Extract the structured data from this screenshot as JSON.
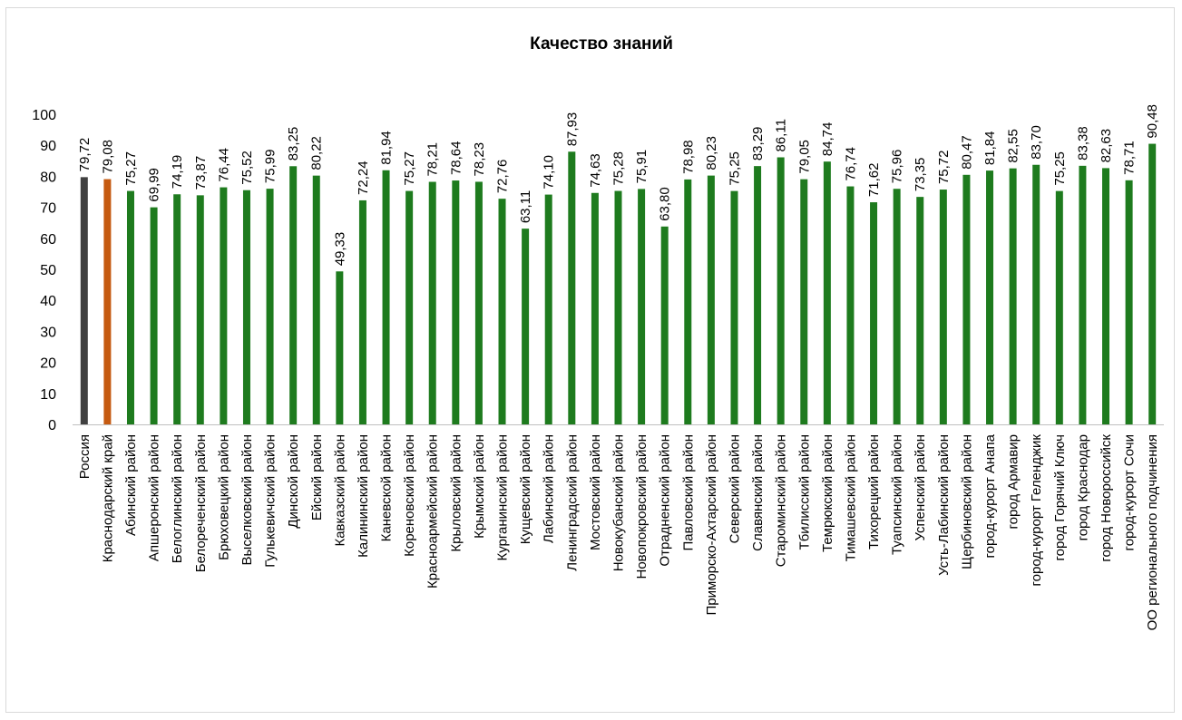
{
  "chart_data": {
    "type": "bar",
    "title": "Качество знаний",
    "ylim": [
      0,
      100
    ],
    "yticks": [
      0,
      10,
      20,
      30,
      40,
      50,
      60,
      70,
      80,
      90,
      100
    ],
    "grid": false,
    "colors": {
      "russia": "#404040",
      "krai": "#c55a11",
      "district": "#1e7b1e"
    },
    "categories": [
      "Россия",
      "Краснодарский край",
      "Абинский район",
      "Апшеронский район",
      "Белоглинский район",
      "Белореченский район",
      "Брюховецкий район",
      "Выселковский район",
      "Гулькевичский район",
      "Динской район",
      "Ейский район",
      "Кавказский район",
      "Калининский район",
      "Каневской район",
      "Кореновский район",
      "Красноармейский район",
      "Крыловский район",
      "Крымский район",
      "Курганинский район",
      "Кущевский район",
      "Лабинский район",
      "Ленинградский район",
      "Мостовский район",
      "Новокубанский район",
      "Новопокровский район",
      "Отрадненский район",
      "Павловский район",
      "Приморско-Ахтарский район",
      "Северский район",
      "Славянский район",
      "Староминский район",
      "Тбилисский район",
      "Темрюкский район",
      "Тимашевский район",
      "Тихорецкий район",
      "Туапсинский район",
      "Успенский район",
      "Усть-Лабинский район",
      "Щербиновский район",
      "город-курорт Анапа",
      "город Армавир",
      "город-курорт Геленджик",
      "город Горячий Ключ",
      "город Краснодар",
      "город Новороссийск",
      "город-курорт Сочи",
      "ОО регионального подчинения"
    ],
    "values": [
      79.72,
      79.08,
      75.27,
      69.99,
      74.19,
      73.87,
      76.44,
      75.52,
      75.99,
      83.25,
      80.22,
      49.33,
      72.24,
      81.94,
      75.27,
      78.21,
      78.64,
      78.23,
      72.76,
      63.11,
      74.1,
      87.93,
      74.63,
      75.28,
      75.91,
      63.8,
      78.98,
      80.23,
      75.25,
      83.29,
      86.11,
      79.05,
      84.74,
      76.74,
      71.62,
      75.96,
      73.35,
      75.72,
      80.47,
      81.84,
      82.55,
      83.7,
      75.25,
      83.38,
      82.63,
      78.71,
      90.48
    ],
    "labels": [
      "79,72",
      "79,08",
      "75,27",
      "69,99",
      "74,19",
      "73,87",
      "76,44",
      "75,52",
      "75,99",
      "83,25",
      "80,22",
      "49,33",
      "72,24",
      "81,94",
      "75,27",
      "78,21",
      "78,64",
      "78,23",
      "72,76",
      "63,11",
      "74,10",
      "87,93",
      "74,63",
      "75,28",
      "75,91",
      "63,80",
      "78,98",
      "80,23",
      "75,25",
      "83,29",
      "86,11",
      "79,05",
      "84,74",
      "76,74",
      "71,62",
      "75,96",
      "73,35",
      "75,72",
      "80,47",
      "81,84",
      "82,55",
      "83,70",
      "75,25",
      "83,38",
      "82,63",
      "78,71",
      "90,48"
    ]
  }
}
